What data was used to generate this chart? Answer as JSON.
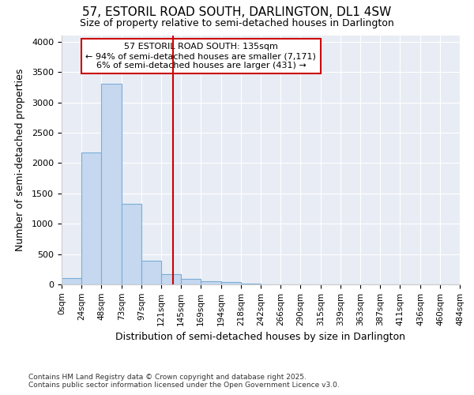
{
  "title1": "57, ESTORIL ROAD SOUTH, DARLINGTON, DL1 4SW",
  "title2": "Size of property relative to semi-detached houses in Darlington",
  "xlabel": "Distribution of semi-detached houses by size in Darlington",
  "ylabel": "Number of semi-detached properties",
  "bar_values": [
    100,
    2175,
    3300,
    1325,
    390,
    165,
    95,
    55,
    35,
    15,
    5,
    2,
    0,
    0,
    0,
    0,
    0,
    0,
    0,
    0
  ],
  "bin_edges": [
    0,
    24,
    48,
    73,
    97,
    121,
    145,
    169,
    194,
    218,
    242,
    266,
    290,
    315,
    339,
    363,
    387,
    411,
    436,
    460,
    484
  ],
  "tick_labels": [
    "0sqm",
    "24sqm",
    "48sqm",
    "73sqm",
    "97sqm",
    "121sqm",
    "145sqm",
    "169sqm",
    "194sqm",
    "218sqm",
    "242sqm",
    "266sqm",
    "290sqm",
    "315sqm",
    "339sqm",
    "363sqm",
    "387sqm",
    "411sqm",
    "436sqm",
    "460sqm",
    "484sqm"
  ],
  "bar_color": "#c5d8f0",
  "bar_edge_color": "#7aaed6",
  "vline_x": 135,
  "vline_color": "#cc0000",
  "annotation_title": "57 ESTORIL ROAD SOUTH: 135sqm",
  "annotation_line1": "← 94% of semi-detached houses are smaller (7,171)",
  "annotation_line2": "6% of semi-detached houses are larger (431) →",
  "annotation_box_color": "#cc0000",
  "ylim": [
    0,
    4100
  ],
  "yticks": [
    0,
    500,
    1000,
    1500,
    2000,
    2500,
    3000,
    3500,
    4000
  ],
  "footnote1": "Contains HM Land Registry data © Crown copyright and database right 2025.",
  "footnote2": "Contains public sector information licensed under the Open Government Licence v3.0.",
  "bg_color": "#ffffff",
  "plot_bg_color": "#e8edf5"
}
